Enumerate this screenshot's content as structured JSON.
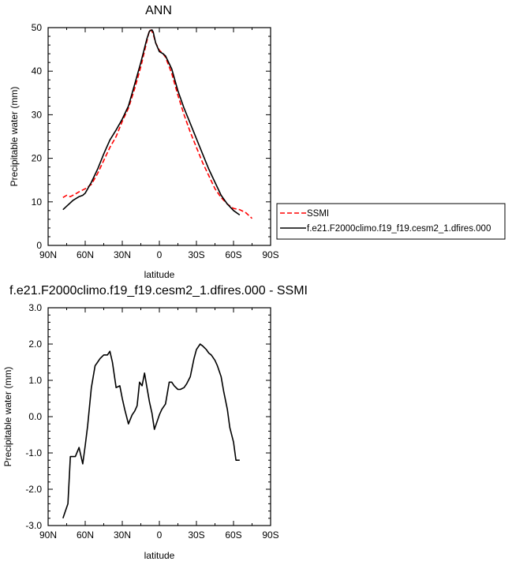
{
  "chart_data": [
    {
      "type": "line",
      "title": "ANN",
      "xlabel": "latitude",
      "ylabel": "Precipitable water (mm)",
      "xlim": [
        90,
        -90
      ],
      "ylim": [
        0,
        50
      ],
      "xticks": [
        90,
        60,
        30,
        0,
        -30,
        -60,
        -90
      ],
      "xtick_labels": [
        "90N",
        "60N",
        "30N",
        "0",
        "30S",
        "60S",
        "90S"
      ],
      "yticks": [
        0,
        10,
        20,
        30,
        40,
        50
      ],
      "ytick_labels": [
        "0",
        "10",
        "20",
        "30",
        "40",
        "50"
      ],
      "legend_position": "right",
      "series": [
        {
          "name": "SSMI",
          "color": "#ff0000",
          "dash": "dashed",
          "x": [
            78,
            75,
            72,
            68,
            65,
            60,
            55,
            50,
            45,
            40,
            35,
            30,
            25,
            20,
            15,
            10,
            8,
            6,
            5,
            3,
            0,
            -3,
            -5,
            -10,
            -15,
            -20,
            -25,
            -30,
            -35,
            -40,
            -45,
            -50,
            -55,
            -60,
            -65,
            -70,
            -75
          ],
          "y": [
            11.0,
            11.5,
            11.2,
            11.8,
            12.3,
            13.0,
            14.0,
            16.5,
            19.5,
            22.5,
            25.0,
            28.5,
            31.5,
            36.0,
            41.0,
            47.0,
            49.5,
            49.2,
            48.5,
            46.5,
            44.8,
            44.0,
            43.2,
            39.5,
            34.5,
            30.0,
            26.0,
            22.5,
            19.0,
            16.0,
            13.0,
            11.0,
            9.5,
            8.5,
            8.2,
            7.5,
            6.2
          ]
        },
        {
          "name": "f.e21.F2000climo.f19_f19.cesm2_1.dfires.000",
          "color": "#000000",
          "dash": "solid",
          "x": [
            78,
            75,
            70,
            65,
            62,
            60,
            55,
            50,
            45,
            40,
            35,
            30,
            25,
            20,
            15,
            10,
            8,
            6,
            5,
            3,
            0,
            -3,
            -5,
            -10,
            -15,
            -20,
            -25,
            -30,
            -35,
            -40,
            -45,
            -50,
            -55,
            -60,
            -65
          ],
          "y": [
            8.2,
            9.0,
            10.3,
            11.2,
            11.5,
            12.0,
            14.5,
            17.5,
            21.0,
            24.2,
            26.5,
            29.0,
            32.0,
            37.0,
            42.0,
            47.5,
            49.2,
            49.5,
            49.0,
            46.5,
            44.5,
            44.0,
            43.5,
            40.5,
            35.5,
            31.5,
            28.0,
            24.5,
            21.0,
            17.5,
            14.5,
            11.5,
            9.5,
            8.0,
            7.0
          ]
        }
      ]
    },
    {
      "type": "line",
      "title": "f.e21.F2000climo.f19_f19.cesm2_1.dfires.000 - SSMI",
      "xlabel": "latitude",
      "ylabel": "Precipitable water (mm)",
      "xlim": [
        90,
        -90
      ],
      "ylim": [
        -3.0,
        3.0
      ],
      "xticks": [
        90,
        60,
        30,
        0,
        -30,
        -60,
        -90
      ],
      "xtick_labels": [
        "90N",
        "60N",
        "30N",
        "0",
        "30S",
        "60S",
        "90S"
      ],
      "yticks": [
        -3.0,
        -2.0,
        -1.0,
        0.0,
        1.0,
        2.0,
        3.0
      ],
      "ytick_labels": [
        "-3.0",
        "-2.0",
        "-1.0",
        "0.0",
        "1.0",
        "2.0",
        "3.0"
      ],
      "series": [
        {
          "color": "#000000",
          "dash": "solid",
          "x": [
            78,
            76,
            74,
            72,
            70,
            68,
            65,
            62,
            60,
            58,
            55,
            52,
            50,
            48,
            45,
            42,
            40,
            38,
            35,
            32,
            30,
            28,
            25,
            22,
            20,
            18,
            16,
            14,
            12,
            10,
            8,
            6,
            4,
            2,
            0,
            -2,
            -5,
            -8,
            -10,
            -12,
            -15,
            -17,
            -20,
            -22,
            -25,
            -28,
            -30,
            -33,
            -35,
            -38,
            -40,
            -42,
            -45,
            -47,
            -50,
            -52,
            -55,
            -57,
            -60,
            -62,
            -65
          ],
          "y": [
            -2.8,
            -2.6,
            -2.4,
            -1.1,
            -1.1,
            -1.1,
            -0.85,
            -1.3,
            -0.8,
            -0.25,
            0.8,
            1.4,
            1.5,
            1.6,
            1.7,
            1.7,
            1.8,
            1.5,
            0.8,
            0.85,
            0.5,
            0.2,
            -0.2,
            0.05,
            0.15,
            0.3,
            0.95,
            0.85,
            1.2,
            0.8,
            0.4,
            0.1,
            -0.35,
            -0.15,
            0.05,
            0.2,
            0.35,
            0.95,
            0.95,
            0.85,
            0.75,
            0.75,
            0.8,
            0.9,
            1.1,
            1.6,
            1.85,
            2.0,
            1.95,
            1.85,
            1.75,
            1.7,
            1.55,
            1.4,
            1.1,
            0.7,
            0.2,
            -0.3,
            -0.7,
            -1.2,
            -1.2
          ]
        }
      ]
    }
  ]
}
